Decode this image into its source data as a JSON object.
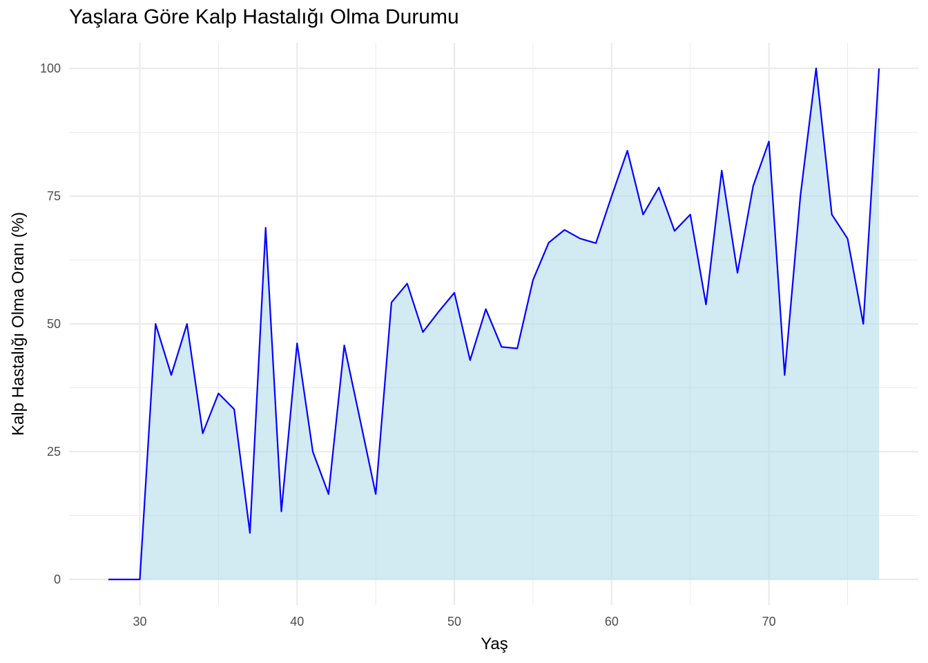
{
  "chart_data": {
    "type": "area",
    "title": "Yaşlara Göre Kalp Hastalığı Olma Durumu",
    "xlabel": "Yaş",
    "ylabel": "Kalp Hastalığı Olma Oranı (%)",
    "xlim": [
      25.5,
      79.5
    ],
    "ylim": [
      -5,
      105
    ],
    "x_ticks": [
      30,
      40,
      50,
      60,
      70
    ],
    "y_ticks": [
      0,
      25,
      50,
      75,
      100
    ],
    "grid": true,
    "legend": "none",
    "colors": {
      "line": "#0000FF",
      "fill": "#ADD8E6",
      "grid": "#EBEBEB",
      "tick_text": "#4D4D4D"
    },
    "series": [
      {
        "x": [
          28,
          29,
          30,
          31,
          32,
          33,
          34,
          35,
          36,
          37,
          38,
          39,
          40,
          41,
          42,
          43,
          44,
          45,
          46,
          47,
          48,
          49,
          50,
          51,
          52,
          53,
          54,
          55,
          56,
          57,
          58,
          59,
          60,
          61,
          62,
          63,
          64,
          65,
          66,
          67,
          68,
          69,
          70,
          71,
          72,
          73,
          74,
          75,
          76,
          77
        ],
        "y": [
          0,
          0,
          0,
          50,
          40,
          50,
          28.6,
          36.4,
          33.3,
          9.1,
          68.8,
          13.3,
          46.2,
          25,
          16.7,
          45.8,
          31.3,
          16.7,
          54.2,
          57.9,
          48.4,
          52.4,
          56.1,
          42.9,
          52.9,
          45.5,
          45.2,
          58.6,
          65.9,
          68.4,
          66.7,
          65.8,
          75,
          83.9,
          71.4,
          76.7,
          68.2,
          71.4,
          53.8,
          80,
          60,
          77,
          85.7,
          40,
          75,
          100,
          71.4,
          66.7,
          50,
          100
        ]
      }
    ]
  }
}
